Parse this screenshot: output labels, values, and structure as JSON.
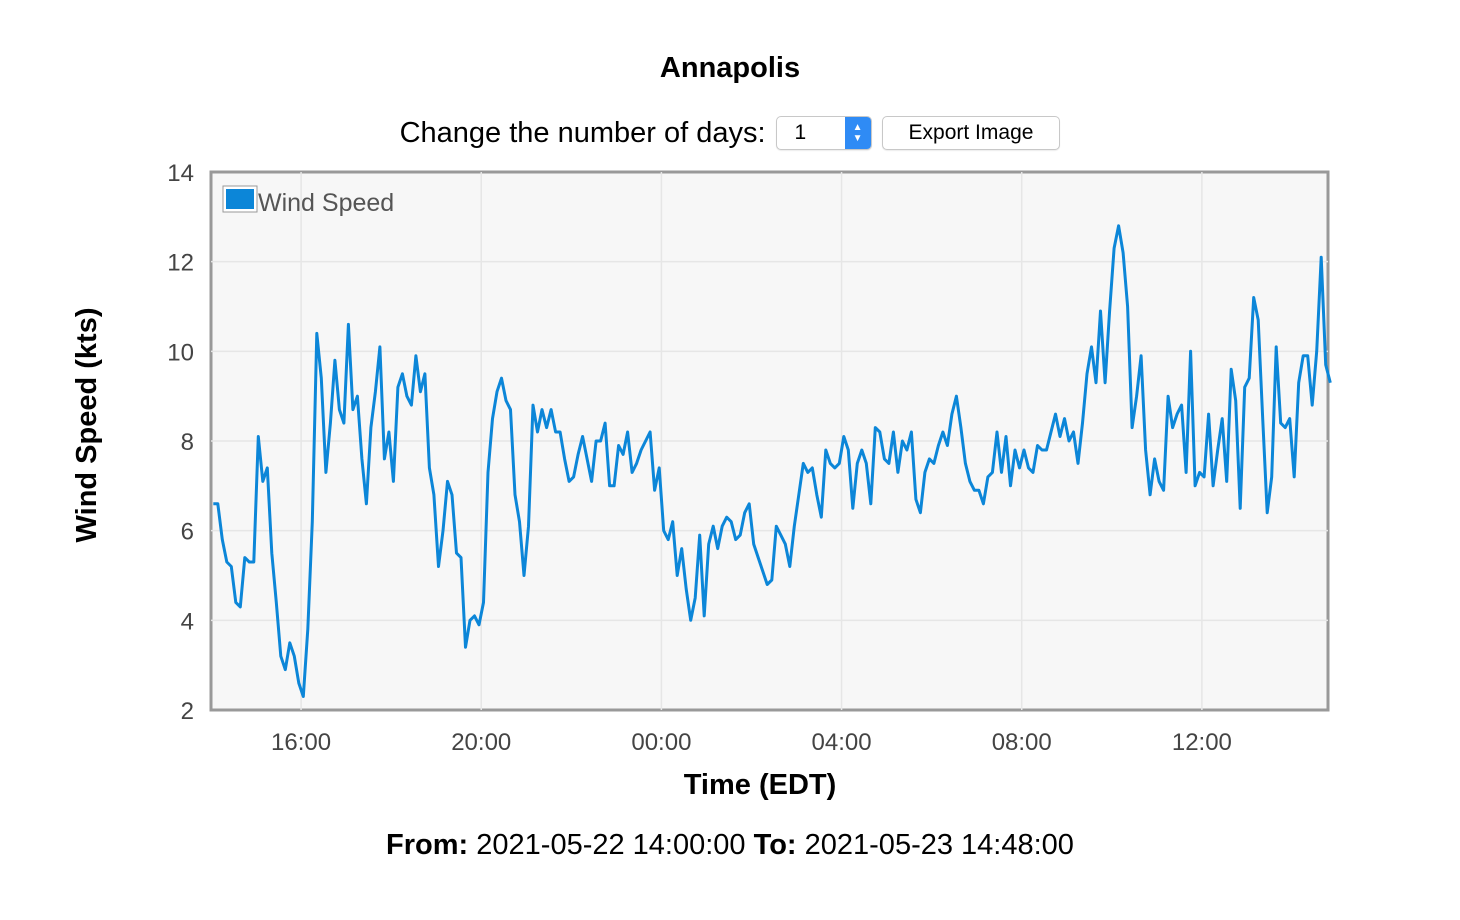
{
  "title": "Annapolis",
  "controls": {
    "days_label": "Change the number of days:",
    "days_value": "1",
    "export_label": "Export Image"
  },
  "range": {
    "from_label": "From:",
    "from_value": "2021-05-22 14:00:00",
    "to_label": "To:",
    "to_value": "2021-05-23 14:48:00"
  },
  "chart_data": {
    "type": "line",
    "xlabel": "Time (EDT)",
    "ylabel": "Wind Speed (kts)",
    "ylim": [
      2,
      14
    ],
    "yticks": [
      2,
      4,
      6,
      8,
      10,
      12,
      14
    ],
    "xlim": [
      "2021-05-22 14:00",
      "2021-05-23 14:48"
    ],
    "xticks": [
      "16:00",
      "20:00",
      "00:00",
      "04:00",
      "08:00",
      "12:00"
    ],
    "grid": true,
    "legend": "top-left",
    "series": [
      {
        "name": "Wind Speed",
        "color": "#0c86d8",
        "x_interval_minutes": 6,
        "values": [
          6.6,
          6.6,
          5.8,
          5.3,
          5.2,
          4.4,
          4.3,
          5.4,
          5.3,
          5.3,
          8.1,
          7.1,
          7.4,
          5.5,
          4.4,
          3.2,
          2.9,
          3.5,
          3.2,
          2.6,
          2.3,
          3.8,
          6.2,
          10.4,
          9.4,
          7.3,
          8.4,
          9.8,
          8.7,
          8.4,
          10.6,
          8.7,
          9.0,
          7.6,
          6.6,
          8.3,
          9.1,
          10.1,
          7.6,
          8.2,
          7.1,
          9.2,
          9.5,
          9.0,
          8.8,
          9.9,
          9.1,
          9.5,
          7.4,
          6.8,
          5.2,
          6.0,
          7.1,
          6.8,
          5.5,
          5.4,
          3.4,
          4.0,
          4.1,
          3.9,
          4.4,
          7.3,
          8.5,
          9.1,
          9.4,
          8.9,
          8.7,
          6.8,
          6.2,
          5.0,
          6.1,
          8.8,
          8.2,
          8.7,
          8.3,
          8.7,
          8.2,
          8.2,
          7.6,
          7.1,
          7.2,
          7.7,
          8.1,
          7.6,
          7.1,
          8.0,
          8.0,
          8.4,
          7.0,
          7.0,
          7.9,
          7.7,
          8.2,
          7.3,
          7.5,
          7.8,
          8.0,
          8.2,
          6.9,
          7.4,
          6.0,
          5.8,
          6.2,
          5.0,
          5.6,
          4.7,
          4.0,
          4.5,
          5.9,
          4.1,
          5.7,
          6.1,
          5.6,
          6.1,
          6.3,
          6.2,
          5.8,
          5.9,
          6.4,
          6.6,
          5.7,
          5.4,
          5.1,
          4.8,
          4.9,
          6.1,
          5.9,
          5.7,
          5.2,
          6.1,
          6.8,
          7.5,
          7.3,
          7.4,
          6.8,
          6.3,
          7.8,
          7.5,
          7.4,
          7.5,
          8.1,
          7.8,
          6.5,
          7.5,
          7.8,
          7.5,
          6.6,
          8.3,
          8.2,
          7.6,
          7.5,
          8.2,
          7.3,
          8.0,
          7.8,
          8.2,
          6.7,
          6.4,
          7.3,
          7.6,
          7.5,
          7.9,
          8.2,
          7.9,
          8.6,
          9.0,
          8.3,
          7.5,
          7.1,
          6.9,
          6.9,
          6.6,
          7.2,
          7.3,
          8.2,
          7.3,
          8.1,
          7.0,
          7.8,
          7.4,
          7.8,
          7.4,
          7.3,
          7.9,
          7.8,
          7.8,
          8.2,
          8.6,
          8.1,
          8.5,
          8.0,
          8.2,
          7.5,
          8.4,
          9.5,
          10.1,
          9.3,
          10.9,
          9.3,
          10.9,
          12.3,
          12.8,
          12.2,
          11.0,
          8.3,
          9.0,
          9.9,
          7.8,
          6.8,
          7.6,
          7.1,
          6.9,
          9.0,
          8.3,
          8.6,
          8.8,
          7.3,
          10.0,
          7.0,
          7.3,
          7.2,
          8.6,
          7.0,
          7.8,
          8.5,
          7.1,
          9.6,
          8.9,
          6.5,
          9.2,
          9.4,
          11.2,
          10.7,
          8.5,
          6.4,
          7.2,
          10.1,
          8.4,
          8.3,
          8.5,
          7.2,
          9.3,
          9.9,
          9.9,
          8.8,
          10.0,
          12.1,
          9.7,
          9.3
        ]
      }
    ]
  }
}
